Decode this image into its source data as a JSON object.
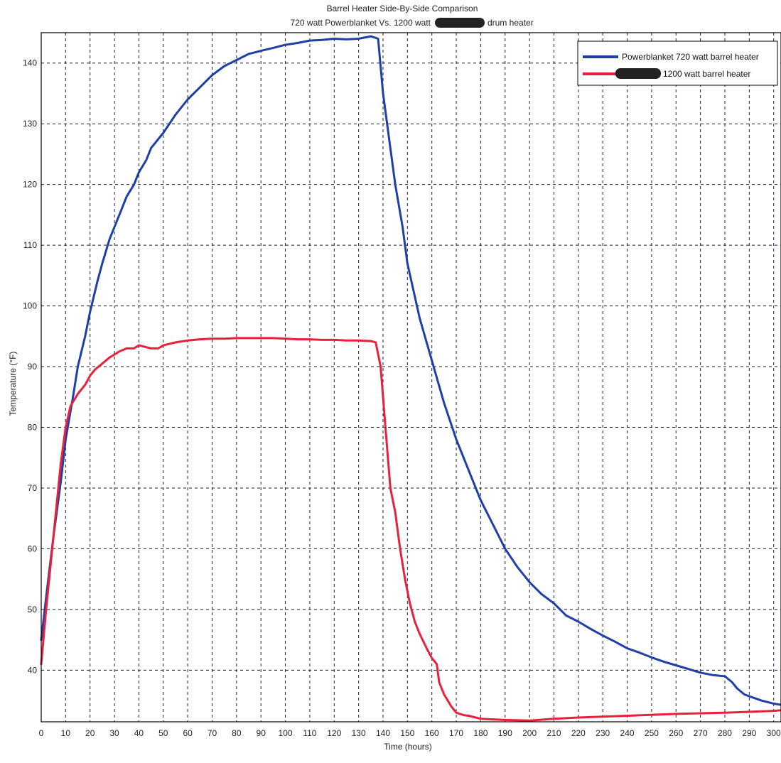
{
  "chart_data": {
    "type": "line",
    "title_line1": "Barrel Heater Side-By-Side Comparison",
    "title_line2_prefix": "720 watt Powerblanket Vs. 1200 watt",
    "title_line2_suffix": "drum heater",
    "xlabel": "Time (hours)",
    "ylabel": "Temperature (°F)",
    "xlim": [
      0,
      303
    ],
    "ylim": [
      31.5,
      145
    ],
    "x_ticks": [
      0,
      10,
      20,
      30,
      40,
      50,
      60,
      70,
      80,
      90,
      100,
      110,
      120,
      130,
      140,
      150,
      160,
      170,
      180,
      190,
      200,
      210,
      220,
      230,
      240,
      250,
      260,
      270,
      280,
      290,
      300
    ],
    "y_ticks": [
      40,
      50,
      60,
      70,
      80,
      90,
      100,
      110,
      120,
      130,
      140
    ],
    "grid": true,
    "legend_position": "top-right",
    "colors": {
      "series1": "#1e3fa8",
      "series2": "#e8203c",
      "redaction": "#222222"
    },
    "series": [
      {
        "name": "Powerblanket 720 watt barrel heater",
        "x": [
          0,
          2,
          5,
          8,
          10,
          13,
          15,
          18,
          20,
          23,
          25,
          28,
          30,
          33,
          35,
          38,
          40,
          43,
          45,
          48,
          50,
          55,
          60,
          65,
          70,
          75,
          80,
          85,
          90,
          95,
          100,
          105,
          110,
          115,
          120,
          125,
          130,
          135,
          138,
          140,
          143,
          145,
          148,
          150,
          155,
          160,
          165,
          170,
          175,
          180,
          185,
          190,
          195,
          200,
          205,
          210,
          215,
          220,
          225,
          230,
          235,
          240,
          245,
          250,
          255,
          260,
          265,
          270,
          275,
          280,
          283,
          285,
          288,
          290,
          295,
          300,
          303
        ],
        "values": [
          45,
          52,
          62,
          71,
          78,
          85,
          90,
          95,
          99,
          104,
          107,
          111,
          113,
          116,
          118,
          120,
          122,
          124,
          126,
          127.5,
          128.5,
          131.5,
          134,
          136,
          138,
          139.5,
          140.5,
          141.5,
          142,
          142.5,
          143,
          143.3,
          143.7,
          143.8,
          144,
          143.9,
          144,
          144.4,
          144,
          135,
          126,
          120,
          113,
          107,
          98,
          91,
          84,
          78,
          73,
          68,
          64,
          60,
          57,
          54.5,
          52.5,
          51,
          49,
          48,
          46.8,
          45.7,
          44.7,
          43.6,
          42.9,
          42.1,
          41.4,
          40.8,
          40.2,
          39.6,
          39.2,
          39,
          38,
          37,
          36,
          35.7,
          35,
          34.5,
          34.3
        ]
      },
      {
        "name": "1200 watt barrel heater",
        "x": [
          0,
          2,
          5,
          8,
          10,
          12,
          15,
          18,
          20,
          22,
          25,
          28,
          30,
          32,
          35,
          38,
          40,
          43,
          45,
          48,
          50,
          55,
          60,
          65,
          70,
          75,
          80,
          85,
          90,
          95,
          100,
          105,
          110,
          115,
          120,
          125,
          130,
          135,
          137,
          139,
          141,
          143,
          145,
          147,
          149,
          151,
          153,
          155,
          158,
          160,
          162,
          163,
          165,
          168,
          170,
          173,
          175,
          180,
          185,
          190,
          200,
          210,
          220,
          240,
          260,
          280,
          300,
          303
        ],
        "values": [
          41,
          50,
          62,
          74,
          80,
          83.5,
          85.5,
          87,
          88.5,
          89.5,
          90.5,
          91.5,
          92,
          92.5,
          93,
          93,
          93.5,
          93.2,
          93,
          93,
          93.5,
          94,
          94.3,
          94.5,
          94.6,
          94.6,
          94.7,
          94.7,
          94.7,
          94.7,
          94.6,
          94.5,
          94.5,
          94.4,
          94.4,
          94.3,
          94.3,
          94.2,
          94,
          90,
          80,
          70,
          66,
          60,
          55,
          51,
          48,
          46,
          43.5,
          42,
          41,
          38,
          36,
          34,
          33,
          32.6,
          32.5,
          32,
          31.9,
          31.8,
          31.7,
          32,
          32.2,
          32.5,
          32.8,
          33,
          33.3,
          33.4
        ]
      }
    ]
  }
}
